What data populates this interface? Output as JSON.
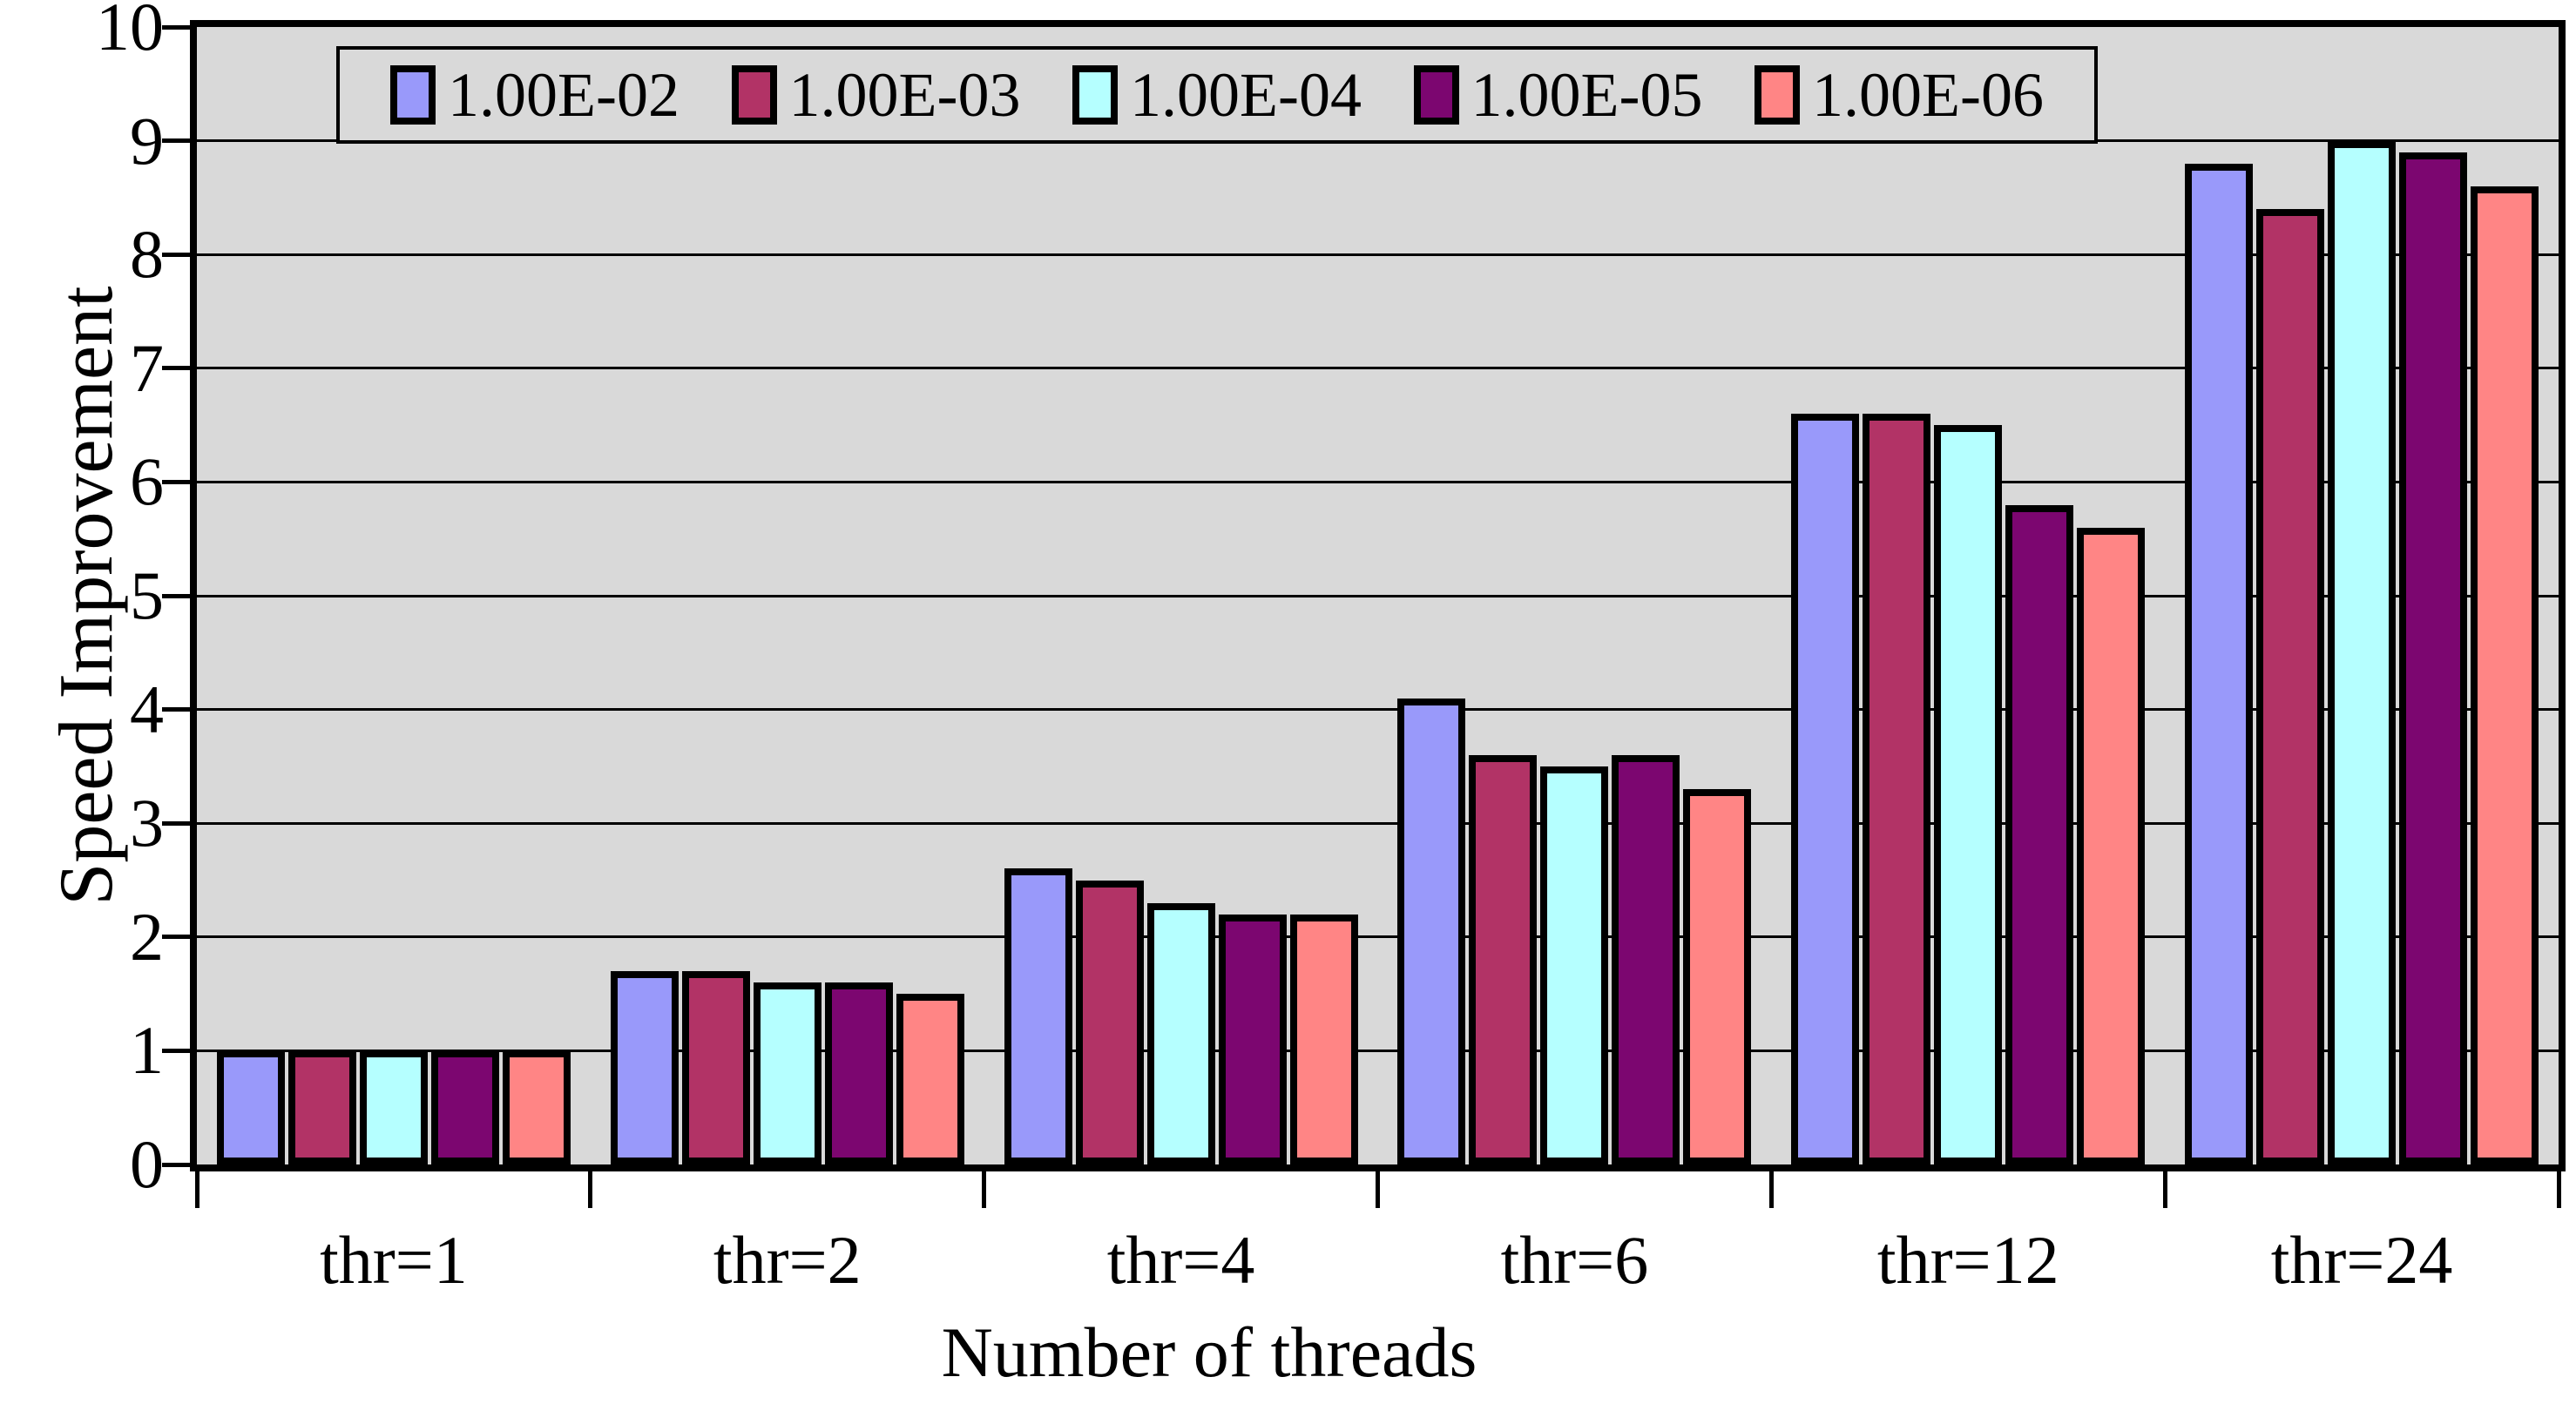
{
  "chart_data": {
    "type": "bar",
    "title": "",
    "xlabel": "Number of threads",
    "ylabel": "Speed Improvement",
    "categories": [
      "thr=1",
      "thr=2",
      "thr=4",
      "thr=6",
      "thr=12",
      "thr=24"
    ],
    "series": [
      {
        "name": "1.00E-02",
        "color": "#9999FA",
        "values": [
          1.0,
          1.7,
          2.6,
          4.1,
          6.6,
          8.8
        ]
      },
      {
        "name": "1.00E-03",
        "color": "#B23366",
        "values": [
          1.0,
          1.7,
          2.5,
          3.6,
          6.6,
          8.4
        ]
      },
      {
        "name": "1.00E-04",
        "color": "#B5FFFF",
        "values": [
          1.0,
          1.6,
          2.3,
          3.5,
          6.5,
          9.0
        ]
      },
      {
        "name": "1.00E-05",
        "color": "#7C0670",
        "values": [
          1.0,
          1.6,
          2.2,
          3.6,
          5.8,
          8.9
        ]
      },
      {
        "name": "1.00E-06",
        "color": "#FF8585",
        "values": [
          1.0,
          1.5,
          2.2,
          3.3,
          5.6,
          8.6
        ]
      }
    ],
    "ylim": [
      0,
      10
    ],
    "yticks": [
      0,
      1,
      2,
      3,
      4,
      5,
      6,
      7,
      8,
      9,
      10
    ],
    "grid": true,
    "legend_position": "top-inside",
    "plot_bg": "#D9D9D9",
    "bar_border_color": "#000000",
    "gridline_color": "#000000"
  }
}
